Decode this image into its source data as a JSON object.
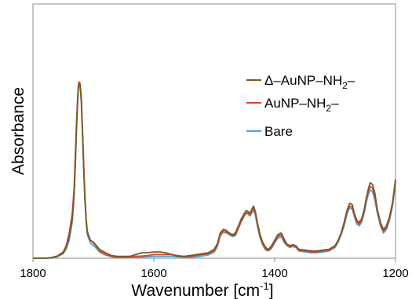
{
  "chart_data": {
    "type": "line",
    "title": "",
    "xlabel": "Wavenumber [cm",
    "xlabel_sup": "-1",
    "xlabel_end": "]",
    "ylabel": "Absorbance",
    "xlim": [
      1800,
      1200
    ],
    "x_reversed": true,
    "ylim": [
      0,
      1.0
    ],
    "y_ticks_shown": false,
    "grid": false,
    "x_ticks": [
      1800,
      1600,
      1400,
      1200
    ],
    "x_tick_labels": [
      "1800",
      "1600",
      "1400",
      "1200"
    ],
    "legend": {
      "placement": "top-right"
    },
    "series": [
      {
        "name": "Δ–AuNP–NH",
        "name_sub": "2",
        "name_end": "–",
        "color": "#7a5c1e",
        "x": [
          1800,
          1780,
          1770,
          1760,
          1750,
          1745,
          1740,
          1735,
          1732,
          1730,
          1728,
          1726,
          1725,
          1724,
          1723,
          1722,
          1720,
          1718,
          1716,
          1714,
          1712,
          1710,
          1705,
          1700,
          1695,
          1690,
          1680,
          1670,
          1660,
          1650,
          1640,
          1630,
          1620,
          1610,
          1600,
          1590,
          1580,
          1570,
          1560,
          1550,
          1540,
          1530,
          1520,
          1510,
          1500,
          1495,
          1490,
          1485,
          1480,
          1475,
          1470,
          1465,
          1460,
          1455,
          1450,
          1447,
          1444,
          1441,
          1438,
          1435,
          1432,
          1428,
          1424,
          1420,
          1415,
          1410,
          1405,
          1400,
          1395,
          1390,
          1388,
          1385,
          1380,
          1375,
          1370,
          1365,
          1360,
          1350,
          1340,
          1330,
          1320,
          1310,
          1300,
          1295,
          1290,
          1285,
          1280,
          1276,
          1272,
          1268,
          1264,
          1260,
          1256,
          1252,
          1248,
          1245,
          1242,
          1238,
          1234,
          1230,
          1225,
          1220,
          1215,
          1210,
          1205,
          1200
        ],
        "y": [
          0.0,
          0.0,
          0.002,
          0.01,
          0.03,
          0.06,
          0.12,
          0.22,
          0.36,
          0.52,
          0.72,
          0.88,
          0.95,
          0.97,
          0.97,
          0.96,
          0.88,
          0.7,
          0.5,
          0.33,
          0.21,
          0.14,
          0.1,
          0.09,
          0.07,
          0.05,
          0.03,
          0.015,
          0.01,
          0.01,
          0.01,
          0.02,
          0.03,
          0.03,
          0.035,
          0.035,
          0.03,
          0.02,
          0.01,
          0.01,
          0.015,
          0.02,
          0.025,
          0.03,
          0.05,
          0.08,
          0.14,
          0.16,
          0.155,
          0.14,
          0.13,
          0.14,
          0.18,
          0.22,
          0.25,
          0.265,
          0.26,
          0.25,
          0.27,
          0.29,
          0.26,
          0.19,
          0.13,
          0.09,
          0.06,
          0.05,
          0.07,
          0.1,
          0.13,
          0.14,
          0.135,
          0.11,
          0.08,
          0.07,
          0.075,
          0.07,
          0.05,
          0.045,
          0.04,
          0.04,
          0.045,
          0.05,
          0.07,
          0.1,
          0.14,
          0.2,
          0.27,
          0.305,
          0.3,
          0.25,
          0.21,
          0.2,
          0.22,
          0.27,
          0.34,
          0.385,
          0.42,
          0.41,
          0.36,
          0.27,
          0.2,
          0.16,
          0.18,
          0.23,
          0.31,
          0.44
        ]
      },
      {
        "name": "AuNP–NH",
        "name_sub": "2",
        "name_end": "–",
        "color": "#ec3d28",
        "x": [
          1800,
          1780,
          1770,
          1760,
          1750,
          1745,
          1740,
          1735,
          1732,
          1730,
          1728,
          1726,
          1725,
          1724,
          1723,
          1722,
          1720,
          1718,
          1716,
          1714,
          1712,
          1710,
          1705,
          1700,
          1695,
          1690,
          1680,
          1670,
          1660,
          1650,
          1640,
          1630,
          1620,
          1610,
          1600,
          1590,
          1580,
          1570,
          1560,
          1550,
          1540,
          1530,
          1520,
          1510,
          1500,
          1495,
          1490,
          1485,
          1480,
          1475,
          1470,
          1465,
          1460,
          1455,
          1450,
          1447,
          1444,
          1441,
          1438,
          1435,
          1432,
          1428,
          1424,
          1420,
          1415,
          1410,
          1405,
          1400,
          1395,
          1390,
          1388,
          1385,
          1380,
          1375,
          1370,
          1365,
          1360,
          1350,
          1340,
          1330,
          1320,
          1310,
          1300,
          1295,
          1290,
          1285,
          1280,
          1276,
          1272,
          1268,
          1264,
          1260,
          1256,
          1252,
          1248,
          1245,
          1242,
          1238,
          1234,
          1230,
          1225,
          1220,
          1215,
          1210,
          1205,
          1200
        ],
        "y": [
          0.0,
          0.0,
          0.003,
          0.012,
          0.035,
          0.07,
          0.14,
          0.25,
          0.39,
          0.56,
          0.75,
          0.9,
          0.96,
          0.98,
          0.98,
          0.97,
          0.9,
          0.72,
          0.52,
          0.35,
          0.22,
          0.15,
          0.1,
          0.085,
          0.065,
          0.04,
          0.02,
          0.01,
          0.005,
          0.005,
          0.008,
          0.01,
          0.012,
          0.015,
          0.02,
          0.02,
          0.02,
          0.02,
          0.015,
          0.01,
          0.01,
          0.015,
          0.02,
          0.025,
          0.04,
          0.07,
          0.13,
          0.15,
          0.145,
          0.135,
          0.125,
          0.13,
          0.17,
          0.21,
          0.24,
          0.255,
          0.25,
          0.24,
          0.26,
          0.28,
          0.25,
          0.18,
          0.12,
          0.08,
          0.05,
          0.045,
          0.06,
          0.09,
          0.12,
          0.13,
          0.125,
          0.1,
          0.075,
          0.065,
          0.07,
          0.065,
          0.045,
          0.04,
          0.035,
          0.035,
          0.04,
          0.045,
          0.065,
          0.095,
          0.135,
          0.19,
          0.26,
          0.29,
          0.285,
          0.24,
          0.2,
          0.19,
          0.21,
          0.26,
          0.33,
          0.37,
          0.4,
          0.39,
          0.34,
          0.26,
          0.19,
          0.15,
          0.17,
          0.22,
          0.3,
          0.43
        ]
      },
      {
        "name": "Bare",
        "color": "#33aee8",
        "x": [
          1800,
          1780,
          1770,
          1760,
          1750,
          1745,
          1740,
          1735,
          1732,
          1730,
          1728,
          1726,
          1725,
          1724,
          1723,
          1722,
          1720,
          1718,
          1716,
          1714,
          1712,
          1710,
          1705,
          1700,
          1695,
          1690,
          1680,
          1670,
          1660,
          1650,
          1640,
          1630,
          1620,
          1610,
          1600,
          1590,
          1580,
          1570,
          1560,
          1550,
          1540,
          1530,
          1520,
          1510,
          1500,
          1495,
          1490,
          1485,
          1480,
          1475,
          1470,
          1465,
          1460,
          1455,
          1450,
          1447,
          1444,
          1441,
          1438,
          1435,
          1432,
          1428,
          1424,
          1420,
          1415,
          1410,
          1405,
          1400,
          1395,
          1390,
          1388,
          1385,
          1380,
          1375,
          1370,
          1365,
          1360,
          1350,
          1340,
          1330,
          1320,
          1310,
          1300,
          1295,
          1290,
          1285,
          1280,
          1276,
          1272,
          1268,
          1264,
          1260,
          1256,
          1252,
          1248,
          1245,
          1242,
          1238,
          1234,
          1230,
          1225,
          1220,
          1215,
          1210,
          1205,
          1200
        ],
        "y": [
          0.0,
          0.0,
          0.001,
          0.008,
          0.025,
          0.05,
          0.1,
          0.2,
          0.34,
          0.5,
          0.7,
          0.87,
          0.94,
          0.96,
          0.965,
          0.955,
          0.87,
          0.69,
          0.49,
          0.32,
          0.2,
          0.13,
          0.085,
          0.07,
          0.055,
          0.035,
          0.018,
          0.008,
          0.004,
          0.004,
          0.004,
          0.005,
          0.006,
          0.008,
          0.01,
          0.01,
          0.01,
          0.01,
          0.008,
          0.006,
          0.005,
          0.008,
          0.012,
          0.018,
          0.035,
          0.065,
          0.125,
          0.145,
          0.14,
          0.13,
          0.12,
          0.125,
          0.165,
          0.205,
          0.235,
          0.25,
          0.245,
          0.235,
          0.25,
          0.27,
          0.24,
          0.17,
          0.11,
          0.075,
          0.045,
          0.04,
          0.055,
          0.085,
          0.11,
          0.12,
          0.115,
          0.09,
          0.07,
          0.06,
          0.065,
          0.06,
          0.04,
          0.035,
          0.03,
          0.03,
          0.035,
          0.04,
          0.06,
          0.09,
          0.13,
          0.18,
          0.25,
          0.28,
          0.275,
          0.23,
          0.19,
          0.18,
          0.2,
          0.25,
          0.315,
          0.355,
          0.38,
          0.37,
          0.32,
          0.25,
          0.18,
          0.14,
          0.16,
          0.21,
          0.29,
          0.42
        ]
      }
    ]
  }
}
